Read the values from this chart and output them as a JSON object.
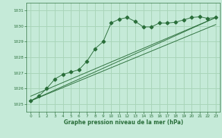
{
  "title": "Graphe pression niveau de la mer (hPa)",
  "background_color": "#c5ead8",
  "grid_color": "#a8d4b8",
  "line_color": "#2a6e3a",
  "xlim": [
    -0.5,
    23.5
  ],
  "ylim": [
    1024.5,
    1031.5
  ],
  "yticks": [
    1025,
    1026,
    1027,
    1028,
    1029,
    1030,
    1031
  ],
  "xticks": [
    0,
    1,
    2,
    3,
    4,
    5,
    6,
    7,
    8,
    9,
    10,
    11,
    12,
    13,
    14,
    15,
    16,
    17,
    18,
    19,
    20,
    21,
    22,
    23
  ],
  "series1_x": [
    0,
    1,
    2,
    3,
    4,
    5,
    6,
    7,
    8,
    9,
    10,
    11,
    12,
    13,
    14,
    15,
    16,
    17,
    18,
    19,
    20,
    21,
    22,
    23
  ],
  "series1_y": [
    1025.2,
    1025.5,
    1026.0,
    1026.6,
    1026.9,
    1027.05,
    1027.2,
    1027.75,
    1028.55,
    1029.0,
    1030.2,
    1030.45,
    1030.55,
    1030.3,
    1029.95,
    1029.95,
    1030.2,
    1030.2,
    1030.25,
    1030.4,
    1030.55,
    1030.6,
    1030.5,
    1030.55
  ],
  "series2_x": [
    0,
    23
  ],
  "series2_y": [
    1025.2,
    1030.55
  ],
  "series3_x": [
    0,
    23
  ],
  "series3_y": [
    1025.5,
    1030.55
  ],
  "series4_x": [
    0,
    23
  ],
  "series4_y": [
    1025.2,
    1030.1
  ]
}
